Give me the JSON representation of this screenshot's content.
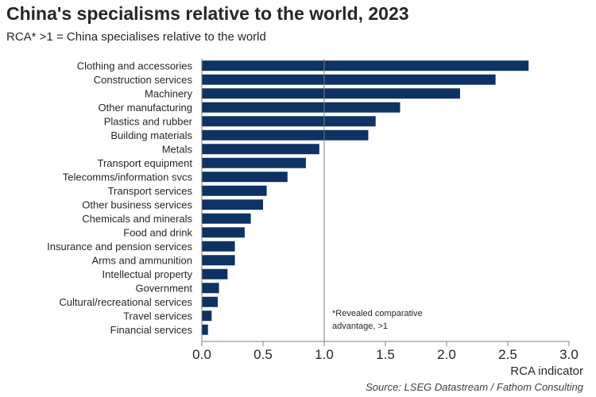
{
  "header": {
    "title": "China's specialisms relative to the world, 2023",
    "subtitle": "RCA* >1 = China specialises relative to the world"
  },
  "footer": {
    "source": "Source: LSEG Datastream / Fathom Consulting"
  },
  "chart_data": {
    "type": "bar",
    "orientation": "horizontal",
    "title": "China's specialisms relative to the world, 2023",
    "subtitle": "RCA* >1 = China specialises relative to the world",
    "xlabel": "RCA indicator",
    "ylabel": "",
    "xlim": [
      0,
      3
    ],
    "xticks": [
      "0.0",
      "0.5",
      "1.0",
      "1.5",
      "2.0",
      "2.5",
      "3.0"
    ],
    "reference_line": 1.0,
    "annotation": [
      "*Revealed comparative",
      "advantage, >1"
    ],
    "bar_color": "#0d3263",
    "grid": false,
    "legend": "none",
    "categories": [
      "Clothing and accessories",
      "Construction services",
      "Machinery",
      "Other manufacturing",
      "Plastics and rubber",
      "Building materials",
      "Metals",
      "Transport equipment",
      "Telecomms/information svcs",
      "Transport services",
      "Other business services",
      "Chemicals and minerals",
      "Food and drink",
      "Insurance and pension services",
      "Arms and ammunition",
      "Intellectual property",
      "Government",
      "Cultural/recreational services",
      "Travel services",
      "Financial services"
    ],
    "values": [
      2.67,
      2.4,
      2.11,
      1.62,
      1.42,
      1.36,
      0.96,
      0.85,
      0.7,
      0.53,
      0.5,
      0.4,
      0.35,
      0.27,
      0.27,
      0.21,
      0.14,
      0.13,
      0.08,
      0.05
    ]
  }
}
